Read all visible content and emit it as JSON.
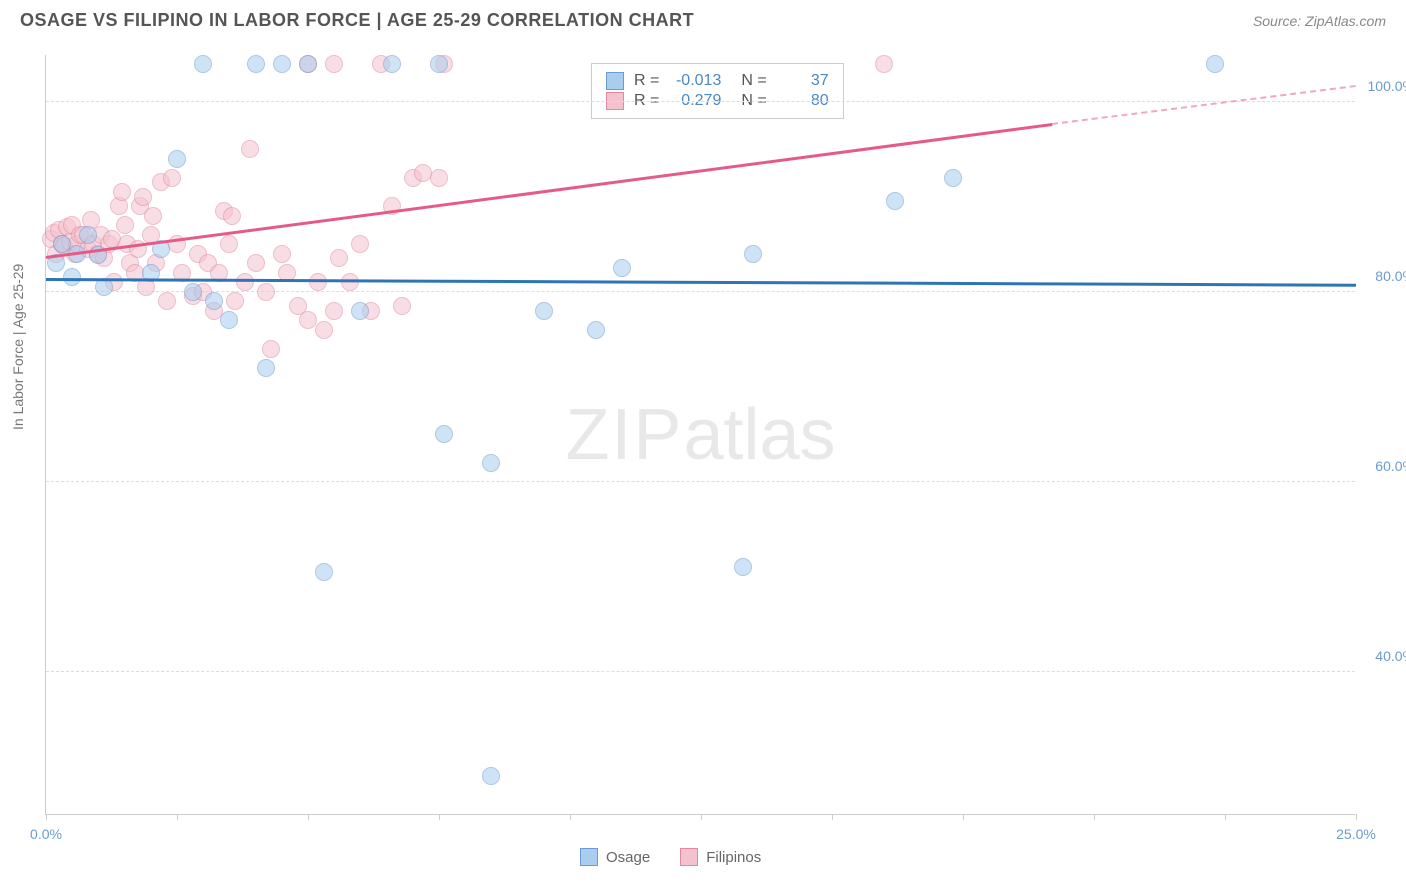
{
  "title": "OSAGE VS FILIPINO IN LABOR FORCE | AGE 25-29 CORRELATION CHART",
  "source_label": "Source: ZipAtlas.com",
  "y_axis_label": "In Labor Force | Age 25-29",
  "watermark": {
    "zip": "ZIP",
    "atlas": "atlas"
  },
  "chart": {
    "type": "scatter",
    "xlim": [
      0,
      25
    ],
    "ylim": [
      25,
      105
    ],
    "x_ticks": [
      0,
      2.5,
      5,
      7.5,
      10,
      12.5,
      15,
      17.5,
      20,
      22.5,
      25
    ],
    "x_tick_labels": {
      "0": "0.0%",
      "25": "25.0%"
    },
    "y_ticks": [
      40,
      60,
      80,
      100
    ],
    "y_tick_labels": {
      "40": "40.0%",
      "60": "60.0%",
      "80": "80.0%",
      "100": "100.0%"
    },
    "background_color": "#ffffff",
    "grid_color": "#dddddd",
    "axis_color": "#cccccc",
    "tick_label_color": "#6b9bd1"
  },
  "series": {
    "osage": {
      "label": "Osage",
      "fill": "#a9cdef",
      "stroke": "#6b9bd1",
      "R": "-0.013",
      "N": "37",
      "trend": {
        "x1": 0,
        "y1": 81.2,
        "x2": 25,
        "y2": 80.6,
        "color": "#2f74b5"
      },
      "points": [
        [
          0.2,
          83
        ],
        [
          0.3,
          85
        ],
        [
          0.5,
          81.5
        ],
        [
          0.6,
          84
        ],
        [
          0.8,
          86
        ],
        [
          1.0,
          83.8
        ],
        [
          1.1,
          80.5
        ],
        [
          2.0,
          82
        ],
        [
          2.2,
          84.5
        ],
        [
          2.5,
          94
        ],
        [
          3.0,
          104
        ],
        [
          4.0,
          104
        ],
        [
          4.5,
          104
        ],
        [
          3.2,
          79
        ],
        [
          2.8,
          80
        ],
        [
          3.5,
          77
        ],
        [
          4.2,
          72
        ],
        [
          5.0,
          104
        ],
        [
          5.3,
          50.5
        ],
        [
          6.0,
          78
        ],
        [
          6.6,
          104
        ],
        [
          7.5,
          104
        ],
        [
          7.6,
          65
        ],
        [
          8.5,
          62
        ],
        [
          8.5,
          29
        ],
        [
          9.5,
          78
        ],
        [
          10.5,
          76
        ],
        [
          11.0,
          82.5
        ],
        [
          13.3,
          51
        ],
        [
          13.5,
          84
        ],
        [
          16.2,
          89.5
        ],
        [
          17.3,
          92
        ],
        [
          22.3,
          104
        ]
      ]
    },
    "filipinos": {
      "label": "Filipinos",
      "fill": "#f4c2cf",
      "stroke": "#e089a3",
      "R": "0.279",
      "N": "80",
      "trend_solid": {
        "x1": 0,
        "y1": 83.5,
        "x2": 19.2,
        "y2": 97.5,
        "color": "#e45c86"
      },
      "trend_dash": {
        "x1": 19.2,
        "y1": 97.5,
        "x2": 25,
        "y2": 101.5,
        "color": "#f0a8bd"
      },
      "points": [
        [
          0.1,
          85.5
        ],
        [
          0.15,
          86.2
        ],
        [
          0.2,
          84.0
        ],
        [
          0.25,
          86.5
        ],
        [
          0.3,
          85.0
        ],
        [
          0.35,
          84.8
        ],
        [
          0.4,
          86.8
        ],
        [
          0.45,
          85.2
        ],
        [
          0.5,
          87.0
        ],
        [
          0.55,
          84.0
        ],
        [
          0.6,
          85.0
        ],
        [
          0.65,
          86.0
        ],
        [
          0.7,
          86.0
        ],
        [
          0.8,
          84.5
        ],
        [
          0.85,
          87.5
        ],
        [
          0.9,
          85.0
        ],
        [
          1.0,
          84.0
        ],
        [
          1.05,
          86.0
        ],
        [
          1.1,
          83.5
        ],
        [
          1.2,
          85.0
        ],
        [
          1.25,
          85.5
        ],
        [
          1.3,
          81.0
        ],
        [
          1.4,
          89.0
        ],
        [
          1.45,
          90.5
        ],
        [
          1.5,
          87.0
        ],
        [
          1.55,
          85.0
        ],
        [
          1.6,
          83.0
        ],
        [
          1.7,
          82.0
        ],
        [
          1.75,
          84.5
        ],
        [
          1.8,
          89.0
        ],
        [
          1.85,
          90.0
        ],
        [
          1.9,
          80.5
        ],
        [
          2.0,
          86.0
        ],
        [
          2.05,
          88.0
        ],
        [
          2.1,
          83.0
        ],
        [
          2.2,
          91.5
        ],
        [
          2.3,
          79.0
        ],
        [
          2.4,
          92.0
        ],
        [
          2.5,
          85.0
        ],
        [
          2.6,
          82.0
        ],
        [
          2.8,
          79.5
        ],
        [
          2.9,
          84.0
        ],
        [
          3.0,
          80.0
        ],
        [
          3.1,
          83.0
        ],
        [
          3.2,
          78.0
        ],
        [
          3.3,
          82.0
        ],
        [
          3.4,
          88.5
        ],
        [
          3.5,
          85.0
        ],
        [
          3.55,
          88.0
        ],
        [
          3.6,
          79.0
        ],
        [
          3.8,
          81.0
        ],
        [
          3.9,
          95.0
        ],
        [
          4.0,
          83.0
        ],
        [
          4.2,
          80.0
        ],
        [
          4.3,
          74.0
        ],
        [
          4.5,
          84.0
        ],
        [
          4.6,
          82.0
        ],
        [
          4.8,
          78.5
        ],
        [
          5.0,
          77.0
        ],
        [
          5.2,
          81.0
        ],
        [
          5.3,
          76.0
        ],
        [
          5.5,
          78.0
        ],
        [
          5.6,
          83.5
        ],
        [
          5.8,
          81.0
        ],
        [
          5.0,
          104
        ],
        [
          5.5,
          104
        ],
        [
          6.0,
          85.0
        ],
        [
          6.2,
          78.0
        ],
        [
          6.4,
          104
        ],
        [
          6.6,
          89.0
        ],
        [
          6.8,
          78.5
        ],
        [
          7.0,
          92.0
        ],
        [
          7.2,
          92.5
        ],
        [
          7.5,
          92.0
        ],
        [
          7.6,
          104
        ],
        [
          16.0,
          104
        ]
      ]
    }
  },
  "stats_box": {
    "R_label": "R =",
    "N_label": "N ="
  },
  "bottom_legend": {
    "items": [
      "osage",
      "filipinos"
    ]
  }
}
